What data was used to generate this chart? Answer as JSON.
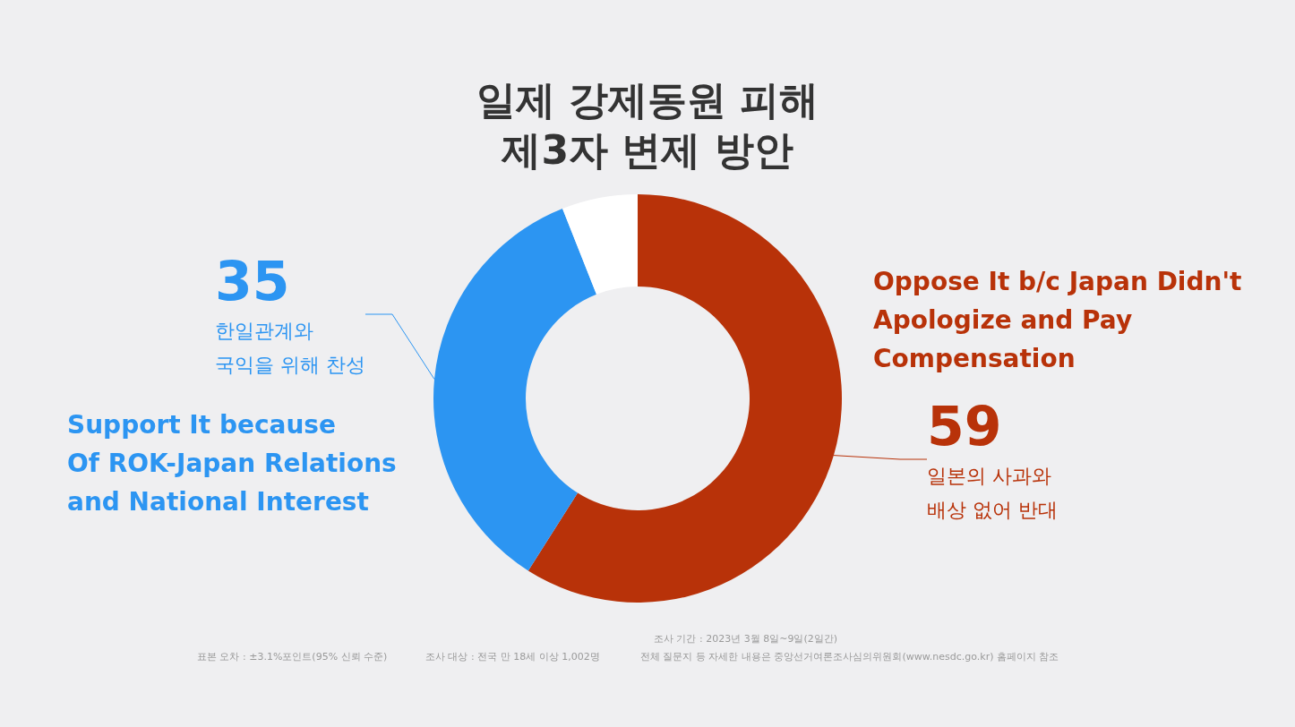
{
  "chart_data": {
    "type": "donut",
    "title": "일제 강제동원 피해\n제3자 변제 방안",
    "categories": [
      "일본의 사과와\n배상 없어 반대",
      "한일관계와\n국익을 위해 찬성",
      null
    ],
    "values": [
      59,
      35,
      6
    ],
    "colors": [
      "#b83209",
      "#2c95f2",
      "#ffffff"
    ],
    "value_labels": [
      "59",
      "35",
      null
    ],
    "legend": false,
    "annotations": [
      "Oppose It b/c Japan Didn't\nApologize and Pay\nCompensation",
      "Support It because\nOf ROK-Japan Relations\nand National Interest",
      "조사 기간 : 2023년 3월 8일~9일(2일간)",
      "표본 오차 : ±3.1%포인트(95% 신뢰 수준)",
      "조사 대상 : 전국 만 18세 이상 1,002명",
      "전체 질문지 등 자세한 내용은 중앙선거여론조사심의위원회(www.nesdc.go.kr) 홈페이지 참조"
    ]
  }
}
